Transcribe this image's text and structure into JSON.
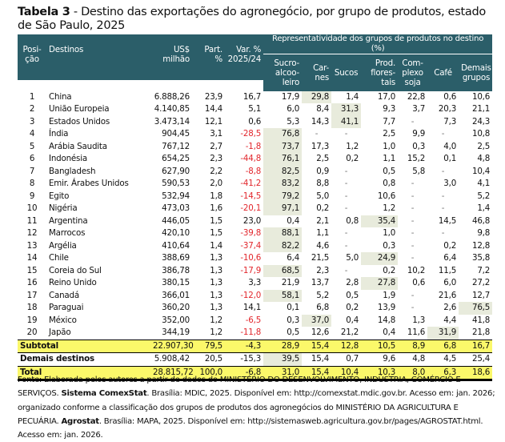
{
  "title": {
    "label": "Tabela 3",
    "text": " - Destino das exportações do agronegócio, por grupo de produtos, estado de São Paulo, 2025"
  },
  "header": {
    "group": "Representatividade dos grupos de produtos no destino (%)",
    "columns": [
      "Posi-\nção",
      "Destinos",
      "US$\nmilhão",
      "Part.\n%",
      "Var. %\n2025/24",
      "Sucro-\nalcoo-\nleiro",
      "Car-\nnes",
      "Sucos",
      "Prod.\nflores-\ntais",
      "Com-\nplexo\nsoja",
      "Café",
      "Demais\ngrupos"
    ]
  },
  "colors": {
    "header_bg": "#2b5e69",
    "highlight": "#e8ebdc",
    "totals": "#fbf86a",
    "negative": "#e2262c"
  },
  "rows": [
    {
      "pos": "1",
      "dest": "China",
      "usd": "6.888,26",
      "part": "23,9",
      "var": "16,7",
      "vals": [
        "17,9",
        "29,8",
        "1,4",
        "17,0",
        "22,8",
        "0,6",
        "10,6"
      ],
      "hl": 1
    },
    {
      "pos": "2",
      "dest": "União Europeia",
      "usd": "4.140,85",
      "part": "14,4",
      "var": "5,1",
      "vals": [
        "6,0",
        "8,4",
        "31,3",
        "9,3",
        "3,7",
        "20,3",
        "21,1"
      ],
      "hl": 2
    },
    {
      "pos": "3",
      "dest": "Estados Unidos",
      "usd": "3.473,14",
      "part": "12,1",
      "var": "0,6",
      "vals": [
        "5,3",
        "14,3",
        "41,1",
        "7,7",
        "-",
        "7,3",
        "24,3"
      ],
      "hl": 2
    },
    {
      "pos": "4",
      "dest": "Índia",
      "usd": "904,45",
      "part": "3,1",
      "var": "-28,5",
      "vals": [
        "76,8",
        "-",
        "-",
        "2,5",
        "9,9",
        "-",
        "10,8"
      ],
      "hl": 0
    },
    {
      "pos": "5",
      "dest": "Arábia Saudita",
      "usd": "767,12",
      "part": "2,7",
      "var": "-1,8",
      "vals": [
        "73,7",
        "17,3",
        "1,2",
        "1,0",
        "0,3",
        "4,0",
        "2,5"
      ],
      "hl": 0
    },
    {
      "pos": "6",
      "dest": "Indonésia",
      "usd": "654,25",
      "part": "2,3",
      "var": "-44,8",
      "vals": [
        "76,1",
        "2,5",
        "0,2",
        "1,1",
        "15,2",
        "0,1",
        "4,8"
      ],
      "hl": 0
    },
    {
      "pos": "7",
      "dest": "Bangladesh",
      "usd": "627,90",
      "part": "2,2",
      "var": "-8,8",
      "vals": [
        "82,5",
        "0,9",
        "-",
        "0,5",
        "5,8",
        "-",
        "10,4"
      ],
      "hl": 0
    },
    {
      "pos": "8",
      "dest": "Emir. Árabes Unidos",
      "usd": "590,53",
      "part": "2,0",
      "var": "-41,2",
      "vals": [
        "83,2",
        "8,8",
        "-",
        "0,8",
        "-",
        "3,0",
        "4,1"
      ],
      "hl": 0
    },
    {
      "pos": "9",
      "dest": "Egito",
      "usd": "532,94",
      "part": "1,8",
      "var": "-14,5",
      "vals": [
        "79,2",
        "5,0",
        "-",
        "10,6",
        "-",
        "-",
        "5,2"
      ],
      "hl": 0
    },
    {
      "pos": "10",
      "dest": "Nigéria",
      "usd": "473,03",
      "part": "1,6",
      "var": "-20,1",
      "vals": [
        "97,1",
        "0,2",
        "-",
        "1,2",
        "-",
        "-",
        "1,4"
      ],
      "hl": 0
    },
    {
      "pos": "11",
      "dest": "Argentina",
      "usd": "446,05",
      "part": "1,5",
      "var": "23,0",
      "vals": [
        "0,4",
        "2,1",
        "0,8",
        "35,4",
        "-",
        "14,5",
        "46,8"
      ],
      "hl": 3
    },
    {
      "pos": "12",
      "dest": "Marrocos",
      "usd": "420,10",
      "part": "1,5",
      "var": "-39,8",
      "vals": [
        "88,1",
        "1,1",
        "-",
        "1,0",
        "-",
        "-",
        "9,8"
      ],
      "hl": 0
    },
    {
      "pos": "13",
      "dest": "Argélia",
      "usd": "410,64",
      "part": "1,4",
      "var": "-37,4",
      "vals": [
        "82,2",
        "4,6",
        "-",
        "0,3",
        "-",
        "0,2",
        "12,8"
      ],
      "hl": 0
    },
    {
      "pos": "14",
      "dest": "Chile",
      "usd": "388,69",
      "part": "1,3",
      "var": "-10,6",
      "vals": [
        "6,4",
        "21,5",
        "5,0",
        "24,9",
        "-",
        "6,4",
        "35,8"
      ],
      "hl": 3
    },
    {
      "pos": "15",
      "dest": "Coreia do Sul",
      "usd": "386,78",
      "part": "1,3",
      "var": "-17,9",
      "vals": [
        "68,5",
        "2,3",
        "-",
        "0,2",
        "10,2",
        "11,5",
        "7,2"
      ],
      "hl": 0
    },
    {
      "pos": "16",
      "dest": "Reino Unido",
      "usd": "380,15",
      "part": "1,3",
      "var": "3,3",
      "vals": [
        "21,9",
        "13,7",
        "2,8",
        "27,8",
        "0,6",
        "6,0",
        "27,2"
      ],
      "hl": 3
    },
    {
      "pos": "17",
      "dest": "Canadá",
      "usd": "366,01",
      "part": "1,3",
      "var": "-12,0",
      "vals": [
        "58,1",
        "5,2",
        "0,5",
        "1,9",
        "-",
        "21,6",
        "12,7"
      ],
      "hl": 0
    },
    {
      "pos": "18",
      "dest": "Paraguai",
      "usd": "360,20",
      "part": "1,3",
      "var": "14,1",
      "vals": [
        "0,1",
        "6,8",
        "0,2",
        "13,9",
        "-",
        "2,6",
        "76,5"
      ],
      "hl": 6
    },
    {
      "pos": "19",
      "dest": "México",
      "usd": "352,00",
      "part": "1,2",
      "var": "-6,5",
      "vals": [
        "0,3",
        "37,0",
        "0,4",
        "14,8",
        "1,3",
        "4,4",
        "41,8"
      ],
      "hl": 1
    },
    {
      "pos": "20",
      "dest": "Japão",
      "usd": "344,19",
      "part": "1,2",
      "var": "-11,8",
      "vals": [
        "0,5",
        "12,6",
        "21,2",
        "0,4",
        "11,6",
        "31,9",
        "21,8"
      ],
      "hl": 5
    }
  ],
  "summary": [
    {
      "kind": "sum",
      "label": "Subtotal",
      "usd": "22.907,30",
      "part": "79,5",
      "var": "-4,3",
      "vals": [
        "28,9",
        "15,4",
        "12,8",
        "10,5",
        "8,9",
        "6,8",
        "16,7"
      ],
      "hl": -1
    },
    {
      "kind": "other",
      "label": "Demais destinos",
      "usd": "5.908,42",
      "part": "20,5",
      "var": "-15,3",
      "vals": [
        "39,5",
        "15,4",
        "0,7",
        "9,6",
        "4,8",
        "4,5",
        "25,4"
      ],
      "hl": 0
    },
    {
      "kind": "sum total",
      "label": "Total",
      "usd": "28.815,72",
      "part": "100,0",
      "var": "-6,8",
      "vals": [
        "31,0",
        "15,4",
        "10,4",
        "10,3",
        "8,0",
        "6,3",
        "18,6"
      ],
      "hl": -1
    }
  ],
  "footer": {
    "t1": "Fonte: Elaborada pelos autores a partir de dados do MINISTÉRIO DO DESENVOLVIMENTO, INDÚSTRIA, COMÉRCIO E SERVIÇOS. ",
    "b1": "Sistema ComexStat",
    "t2": ". Brasília: MDIC, 2025. Disponível em: http://comexstat.mdic.gov.br. Acesso em: jan. 2026; organizado conforme a classificação dos grupos de produtos dos agronegócios do MINISTÉRIO DA AGRICULTURA E PECUÁRIA. ",
    "b2": "Agrostat",
    "t3": ". Brasília: MAPA, 2025. Disponível em: http://sistemasweb.agricultura.gov.br/pages/AGROSTAT.html. Acesso em: jan. 2026."
  }
}
